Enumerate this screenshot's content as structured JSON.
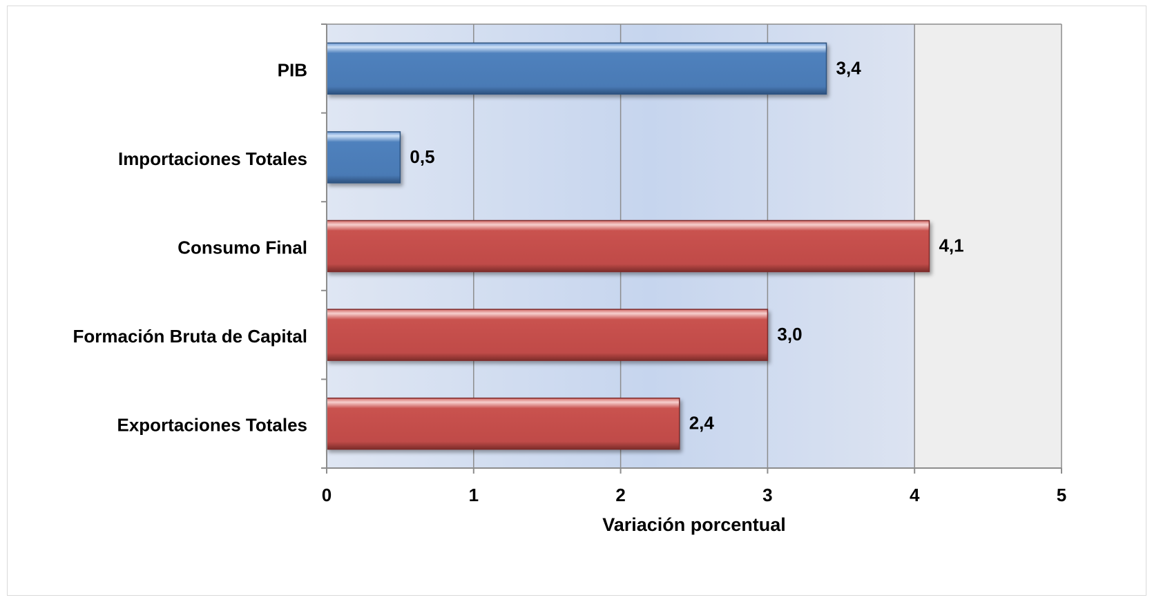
{
  "chart_data": {
    "type": "bar",
    "orientation": "horizontal",
    "categories": [
      "PIB",
      "Importaciones Totales",
      "Consumo Final",
      "Formación Bruta de Capital",
      "Exportaciones Totales"
    ],
    "values": [
      3.4,
      0.5,
      4.1,
      3.0,
      2.4
    ],
    "data_labels": [
      "3,4",
      "0,5",
      "4,1",
      "3,0",
      "2,4"
    ],
    "bar_colors": [
      "#4f81bd",
      "#4f81bd",
      "#c0504d",
      "#c0504d",
      "#c0504d"
    ],
    "xlabel": "Variación porcentual",
    "xlim": [
      0,
      5
    ],
    "x_ticks": [
      "0",
      "1",
      "2",
      "3",
      "4",
      "5"
    ],
    "grid": true
  }
}
